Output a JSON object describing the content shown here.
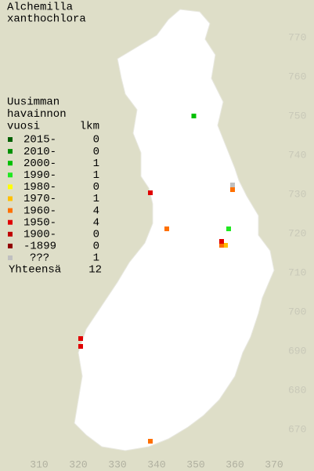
{
  "title": [
    "Alchemilla",
    "xanthochlora"
  ],
  "legend": {
    "heading": [
      "Uusimman",
      "havainnon",
      "vuosi"
    ],
    "count_heading": "lkm",
    "rows": [
      {
        "label": "2015-",
        "count": 0,
        "color": "#006000"
      },
      {
        "label": "2010-",
        "count": 0,
        "color": "#009000"
      },
      {
        "label": "2000-",
        "count": 1,
        "color": "#00c000"
      },
      {
        "label": "1990-",
        "count": 1,
        "color": "#20e820"
      },
      {
        "label": "1980-",
        "count": 0,
        "color": "#ffff00"
      },
      {
        "label": "1970-",
        "count": 1,
        "color": "#ffc000"
      },
      {
        "label": "1960-",
        "count": 4,
        "color": "#ff7000"
      },
      {
        "label": "1950-",
        "count": 4,
        "color": "#e00000"
      },
      {
        "label": "1900-",
        "count": 0,
        "color": "#c00000"
      },
      {
        "label": "-1899",
        "count": 0,
        "color": "#900000"
      },
      {
        "label": "???",
        "count": 1,
        "color": "#c0c0c0"
      }
    ],
    "total_label": "Yhteensä",
    "total": 12
  },
  "map": {
    "xticks": [
      310,
      320,
      330,
      340,
      350,
      360,
      370
    ],
    "yticks": [
      670,
      680,
      690,
      700,
      710,
      720,
      730,
      740,
      750,
      760,
      770
    ],
    "points": [
      {
        "x": 349.5,
        "y": 750,
        "color": "#00c000"
      },
      {
        "x": 358.4,
        "y": 721.2,
        "color": "#20e820"
      },
      {
        "x": 357.6,
        "y": 717,
        "color": "#ffc000"
      },
      {
        "x": 359.4,
        "y": 731.2,
        "color": "#ff7000"
      },
      {
        "x": 342.6,
        "y": 721.2,
        "color": "#ff7000"
      },
      {
        "x": 356.6,
        "y": 717,
        "color": "#ff7000"
      },
      {
        "x": 338.4,
        "y": 667,
        "color": "#ff7000"
      },
      {
        "x": 338.4,
        "y": 730.4,
        "color": "#e00000"
      },
      {
        "x": 356.6,
        "y": 718,
        "color": "#e00000"
      },
      {
        "x": 320.6,
        "y": 693.2,
        "color": "#e00000"
      },
      {
        "x": 320.6,
        "y": 691.2,
        "color": "#e00000"
      },
      {
        "x": 359.4,
        "y": 732.4,
        "color": "#c0c0c0"
      }
    ]
  }
}
